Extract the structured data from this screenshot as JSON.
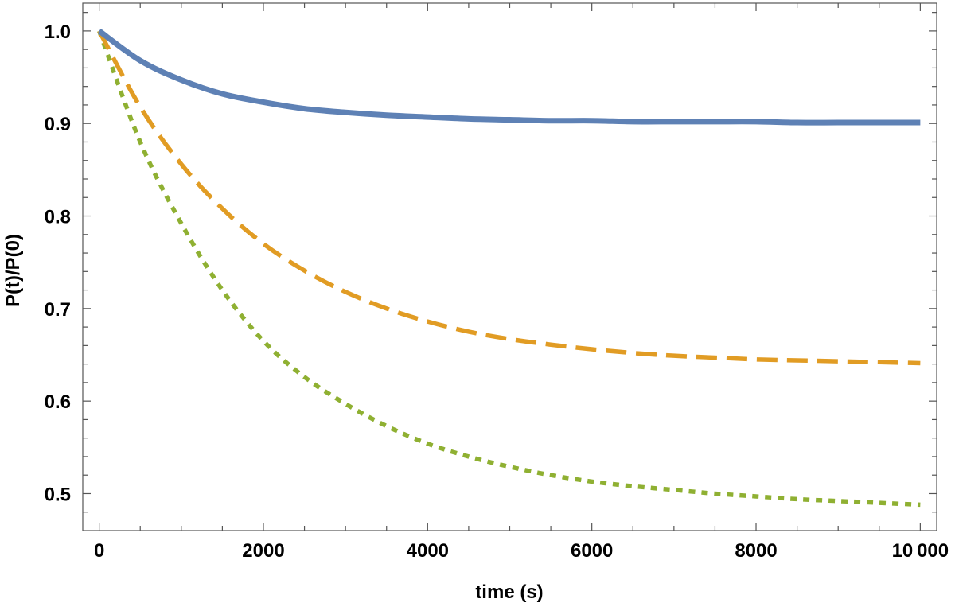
{
  "chart_data": {
    "type": "line",
    "xlabel": "time (s)",
    "ylabel": "P(t)/P(0)",
    "xlim": [
      -200,
      10200
    ],
    "ylim": [
      0.46,
      1.03
    ],
    "x_ticks": [
      0,
      2000,
      4000,
      6000,
      8000,
      10000
    ],
    "x_tick_labels": [
      "0",
      "2000",
      "4000",
      "6000",
      "8000",
      "10 000"
    ],
    "y_ticks": [
      0.5,
      0.6,
      0.7,
      0.8,
      0.9,
      1.0
    ],
    "y_tick_labels": [
      "0.5",
      "0.6",
      "0.7",
      "0.8",
      "0.9",
      "1.0"
    ],
    "grid": false,
    "x": [
      0,
      500,
      1000,
      1500,
      2000,
      2500,
      3000,
      3500,
      4000,
      4500,
      5000,
      5500,
      6000,
      6500,
      7000,
      7500,
      8000,
      8500,
      9000,
      9500,
      10000
    ],
    "series": [
      {
        "color": "#5E81B5",
        "style": "solid",
        "values": [
          1.0,
          0.968,
          0.947,
          0.932,
          0.923,
          0.916,
          0.912,
          0.909,
          0.907,
          0.905,
          0.904,
          0.903,
          0.903,
          0.902,
          0.902,
          0.902,
          0.902,
          0.901,
          0.901,
          0.901,
          0.901
        ]
      },
      {
        "color": "#E19C24",
        "style": "dashed",
        "values": [
          1.0,
          0.918,
          0.856,
          0.808,
          0.77,
          0.741,
          0.718,
          0.7,
          0.686,
          0.675,
          0.667,
          0.661,
          0.656,
          0.652,
          0.649,
          0.647,
          0.645,
          0.644,
          0.643,
          0.642,
          0.641
        ]
      },
      {
        "color": "#8FB032",
        "style": "dotted",
        "values": [
          1.0,
          0.88,
          0.792,
          0.72,
          0.665,
          0.626,
          0.597,
          0.573,
          0.554,
          0.54,
          0.529,
          0.52,
          0.513,
          0.508,
          0.504,
          0.5,
          0.497,
          0.494,
          0.492,
          0.49,
          0.488
        ]
      }
    ]
  }
}
